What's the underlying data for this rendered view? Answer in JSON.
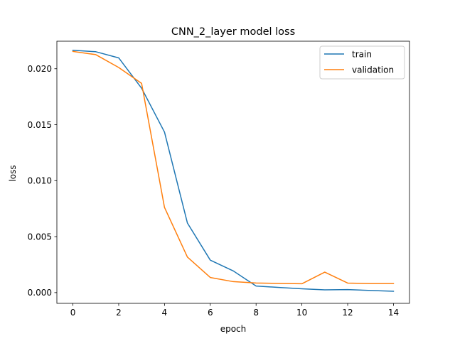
{
  "chart_data": {
    "type": "line",
    "title": "CNN_2_layer model loss",
    "xlabel": "epoch",
    "ylabel": "loss",
    "xlim": [
      -0.7,
      14.7
    ],
    "ylim": [
      -0.00096,
      0.02246
    ],
    "x_ticks": [
      0,
      2,
      4,
      6,
      8,
      10,
      12,
      14
    ],
    "y_ticks": [
      0.0,
      0.005,
      0.01,
      0.015,
      0.02
    ],
    "y_tick_labels": [
      "0.000",
      "0.005",
      "0.010",
      "0.015",
      "0.020"
    ],
    "grid": false,
    "legend_position": "top-right",
    "x": [
      0,
      1,
      2,
      3,
      4,
      5,
      6,
      7,
      8,
      9,
      10,
      11,
      12,
      13,
      14
    ],
    "series": [
      {
        "name": "train",
        "color": "#1f77b4",
        "values": [
          0.02165,
          0.02152,
          0.02097,
          0.01826,
          0.01434,
          0.00622,
          0.0029,
          0.00194,
          0.00059,
          0.00046,
          0.00034,
          0.00025,
          0.00027,
          0.00019,
          0.00012
        ]
      },
      {
        "name": "validation",
        "color": "#ff7f0e",
        "values": [
          0.02155,
          0.02126,
          0.02011,
          0.01869,
          0.00761,
          0.00318,
          0.00135,
          0.00098,
          0.00086,
          0.00082,
          0.00079,
          0.00183,
          0.00085,
          0.00081,
          0.00081
        ]
      }
    ]
  }
}
